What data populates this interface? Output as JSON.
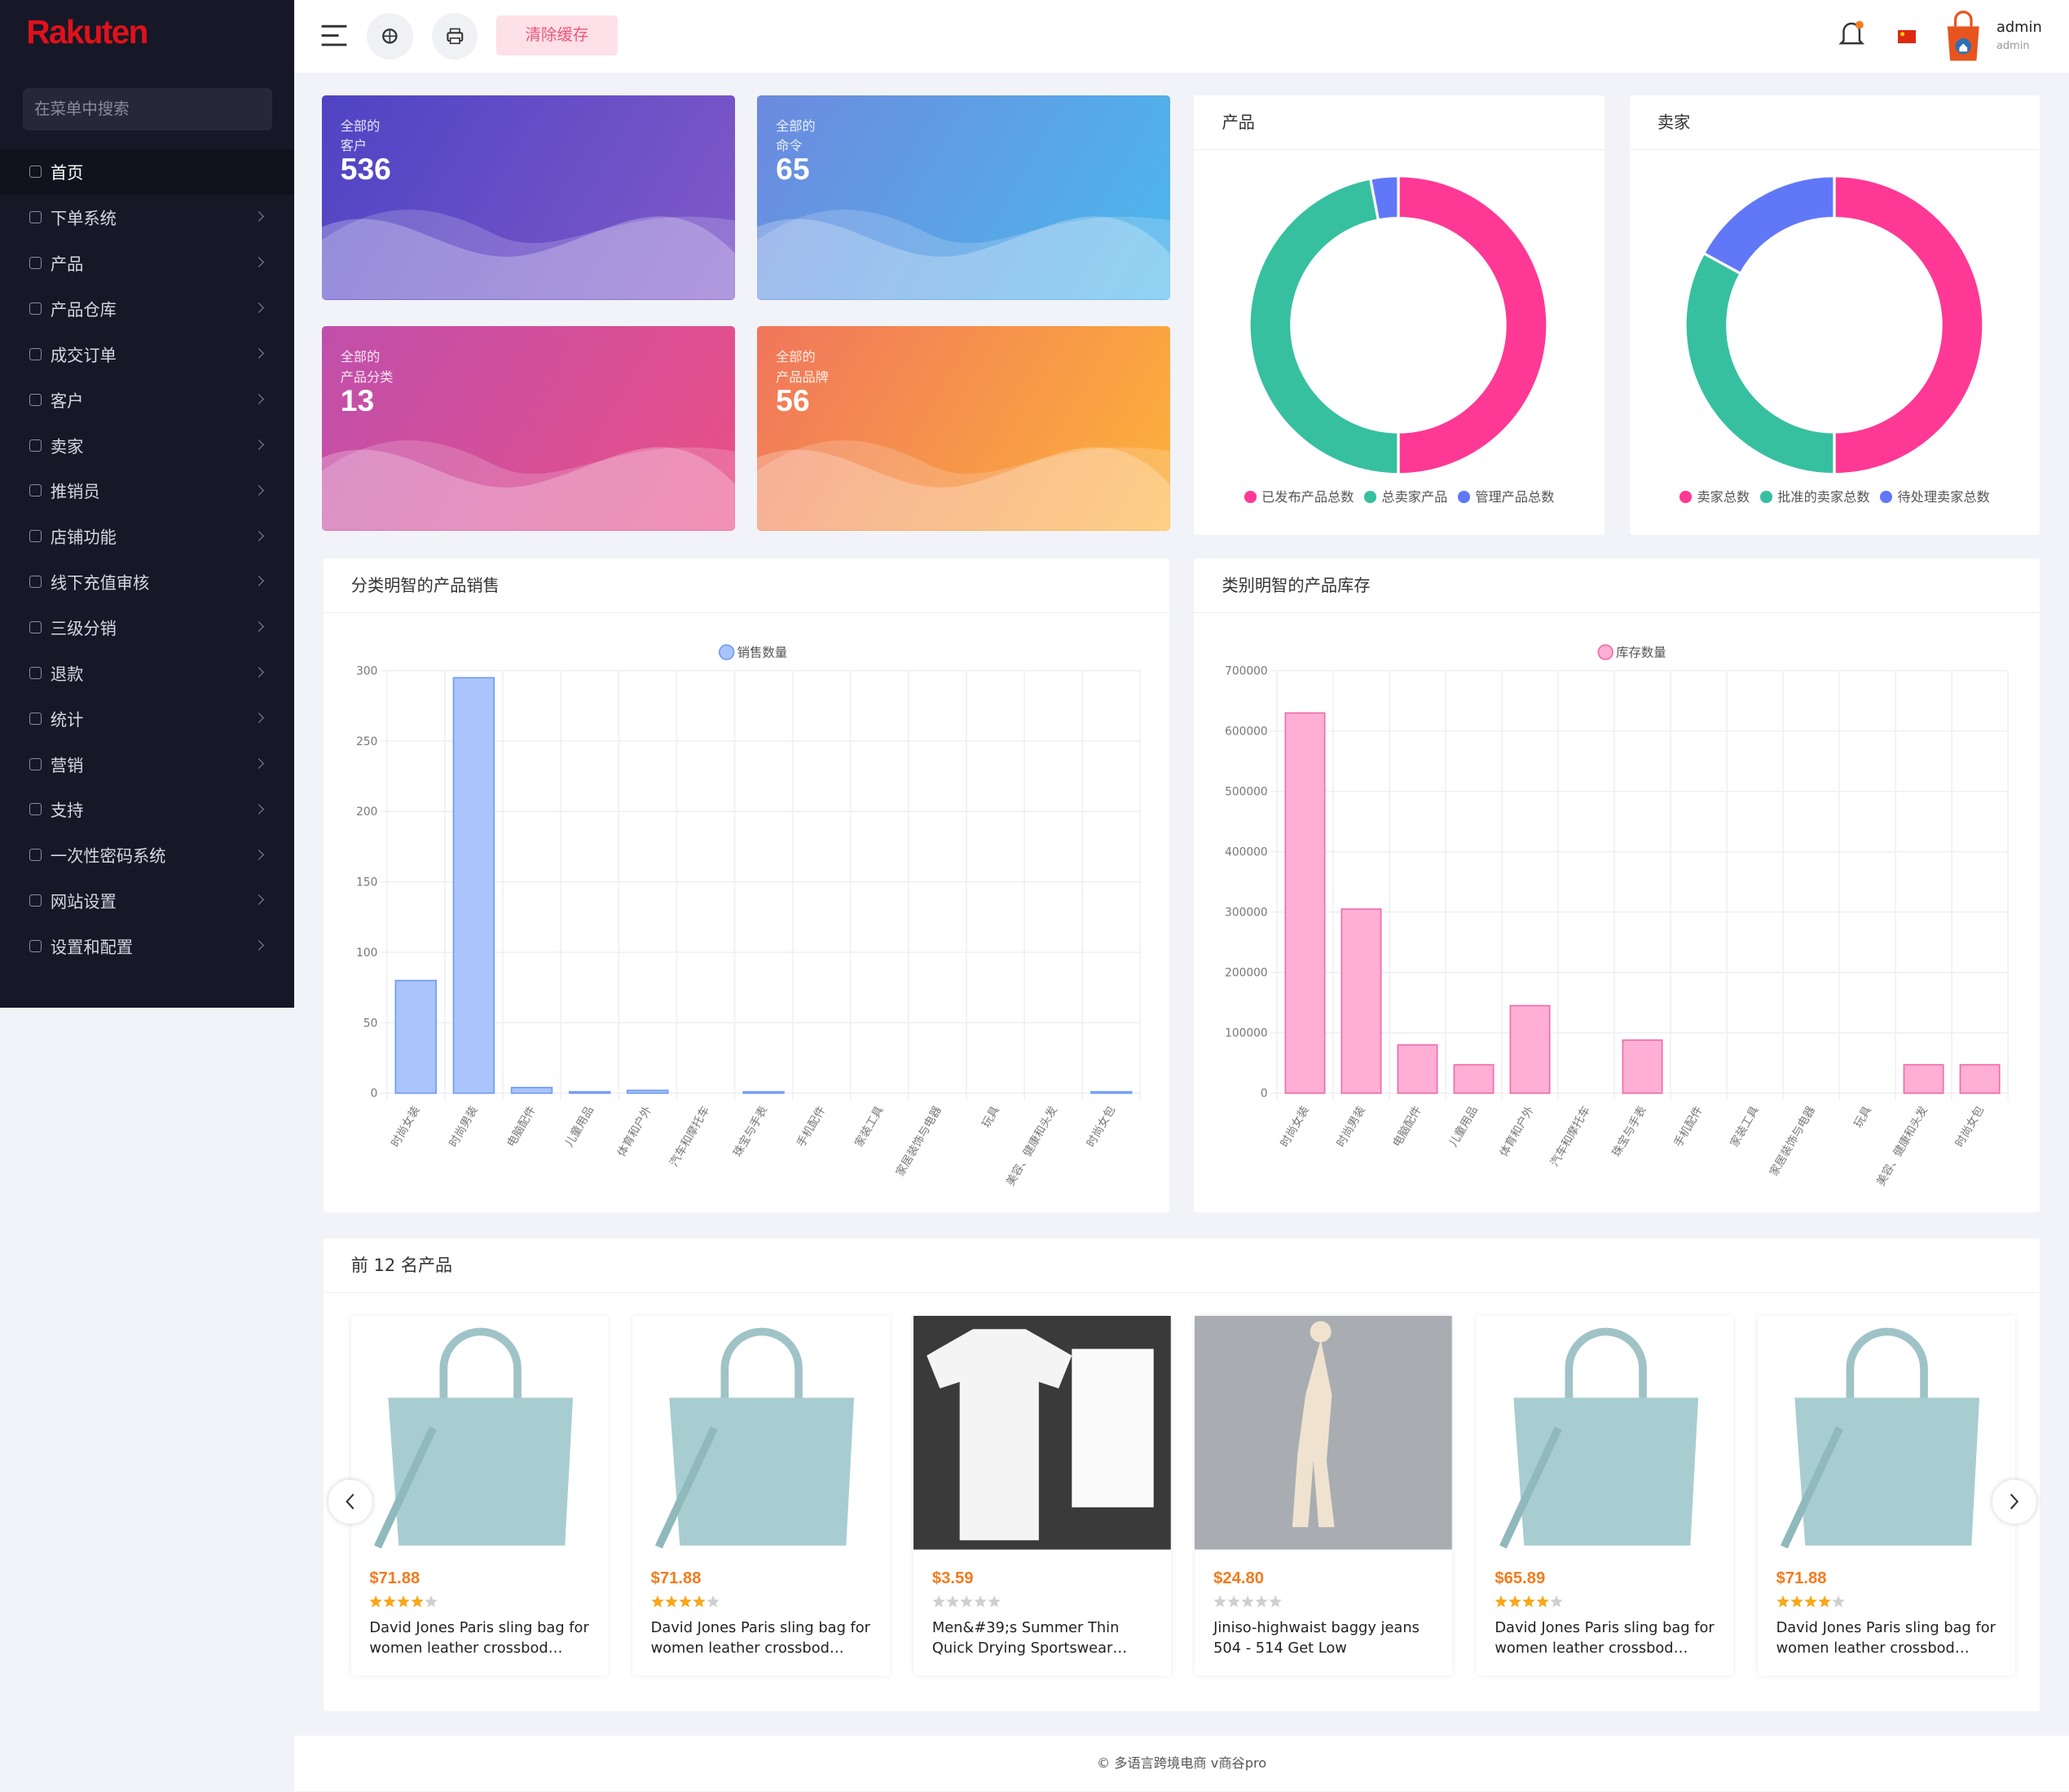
{
  "sidebar": {
    "logo": "Rakuten",
    "search_placeholder": "在菜单中搜索",
    "menu": [
      "首页",
      "下单系统",
      "产品",
      "产品仓库",
      "成交订单",
      "客户",
      "卖家",
      "推销员",
      "店铺功能",
      "线下充值审核",
      "三级分销",
      "退款",
      "统计",
      "营销",
      "支持",
      "一次性密码系统",
      "网站设置",
      "设置和配置"
    ]
  },
  "header": {
    "clear_cache": "清除缓存",
    "user_name": "admin",
    "user_role": "admin"
  },
  "stats": [
    {
      "line1": "全部的",
      "line2": "客户",
      "value": 536
    },
    {
      "line1": "全部的",
      "line2": "命令",
      "value": 65
    },
    {
      "line1": "全部的",
      "line2": "产品分类",
      "value": 13
    },
    {
      "line1": "全部的",
      "line2": "产品品牌",
      "value": 56
    }
  ],
  "chart_data": [
    {
      "type": "donut",
      "title": "产品",
      "categories": [
        "已发布产品总数",
        "总卖家产品",
        "管理产品总数"
      ],
      "values": [
        50,
        47,
        3
      ],
      "colors": [
        "#fd3995",
        "#36c0a0",
        "#6078f7"
      ]
    },
    {
      "type": "donut",
      "title": "卖家",
      "categories": [
        "卖家总数",
        "批准的卖家总数",
        "待处理卖家总数"
      ],
      "values": [
        50,
        33,
        17
      ],
      "colors": [
        "#fd3995",
        "#36c0a0",
        "#6078f7"
      ]
    },
    {
      "type": "bar",
      "title": "分类明智的产品销售",
      "categories": [
        "时尚女装",
        "时尚男装",
        "电脑配件",
        "儿童用品",
        "体育和户外",
        "汽车和摩托车",
        "珠宝与手表",
        "手机配件",
        "家装工具",
        "家居装饰与电器",
        "玩具",
        "美容、健康和头发",
        "时尚女包"
      ],
      "series": [
        {
          "name": "销售数量",
          "color": "#aac4fc",
          "values": [
            80,
            295,
            4,
            1,
            2,
            0,
            1,
            0,
            0,
            0,
            0,
            0,
            1
          ]
        }
      ],
      "ylim": [
        0,
        300
      ],
      "yticks": [
        0,
        50,
        100,
        150,
        200,
        250,
        300
      ],
      "grid": true
    },
    {
      "type": "bar",
      "title": "类别明智的产品库存",
      "categories": [
        "时尚女装",
        "时尚男装",
        "电脑配件",
        "儿童用品",
        "体育和户外",
        "汽车和摩托车",
        "珠宝与手表",
        "手机配件",
        "家装工具",
        "家居装饰与电器",
        "玩具",
        "美容、健康和头发",
        "时尚女包"
      ],
      "series": [
        {
          "name": "库存数量",
          "color": "#ffaed5",
          "values": [
            630000,
            305000,
            80000,
            47000,
            145000,
            0,
            88000,
            0,
            0,
            0,
            0,
            47000,
            47000
          ]
        }
      ],
      "ylim": [
        0,
        700000
      ],
      "yticks": [
        0,
        100000,
        200000,
        300000,
        400000,
        500000,
        600000,
        700000
      ],
      "grid": true
    }
  ],
  "products": {
    "title": "前 12 名产品",
    "items": [
      {
        "price": "$71.88",
        "rating": 4,
        "name": "David Jones Paris sling bag for women leather crossbod…"
      },
      {
        "price": "$71.88",
        "rating": 4,
        "name": "David Jones Paris sling bag for women leather crossbod…"
      },
      {
        "price": "$3.59",
        "rating": 0,
        "name": "Men&#39;s Summer Thin Quick Drying Sportswear…"
      },
      {
        "price": "$24.80",
        "rating": 0,
        "name": "Jiniso-highwaist baggy jeans 504 - 514 Get Low"
      },
      {
        "price": "$65.89",
        "rating": 4,
        "name": "David Jones Paris sling bag for women leather crossbod…"
      },
      {
        "price": "$71.88",
        "rating": 4,
        "name": "David Jones Paris sling bag for women leather crossbod…"
      }
    ]
  },
  "footer": "© 多语言跨境电商 v商谷pro"
}
